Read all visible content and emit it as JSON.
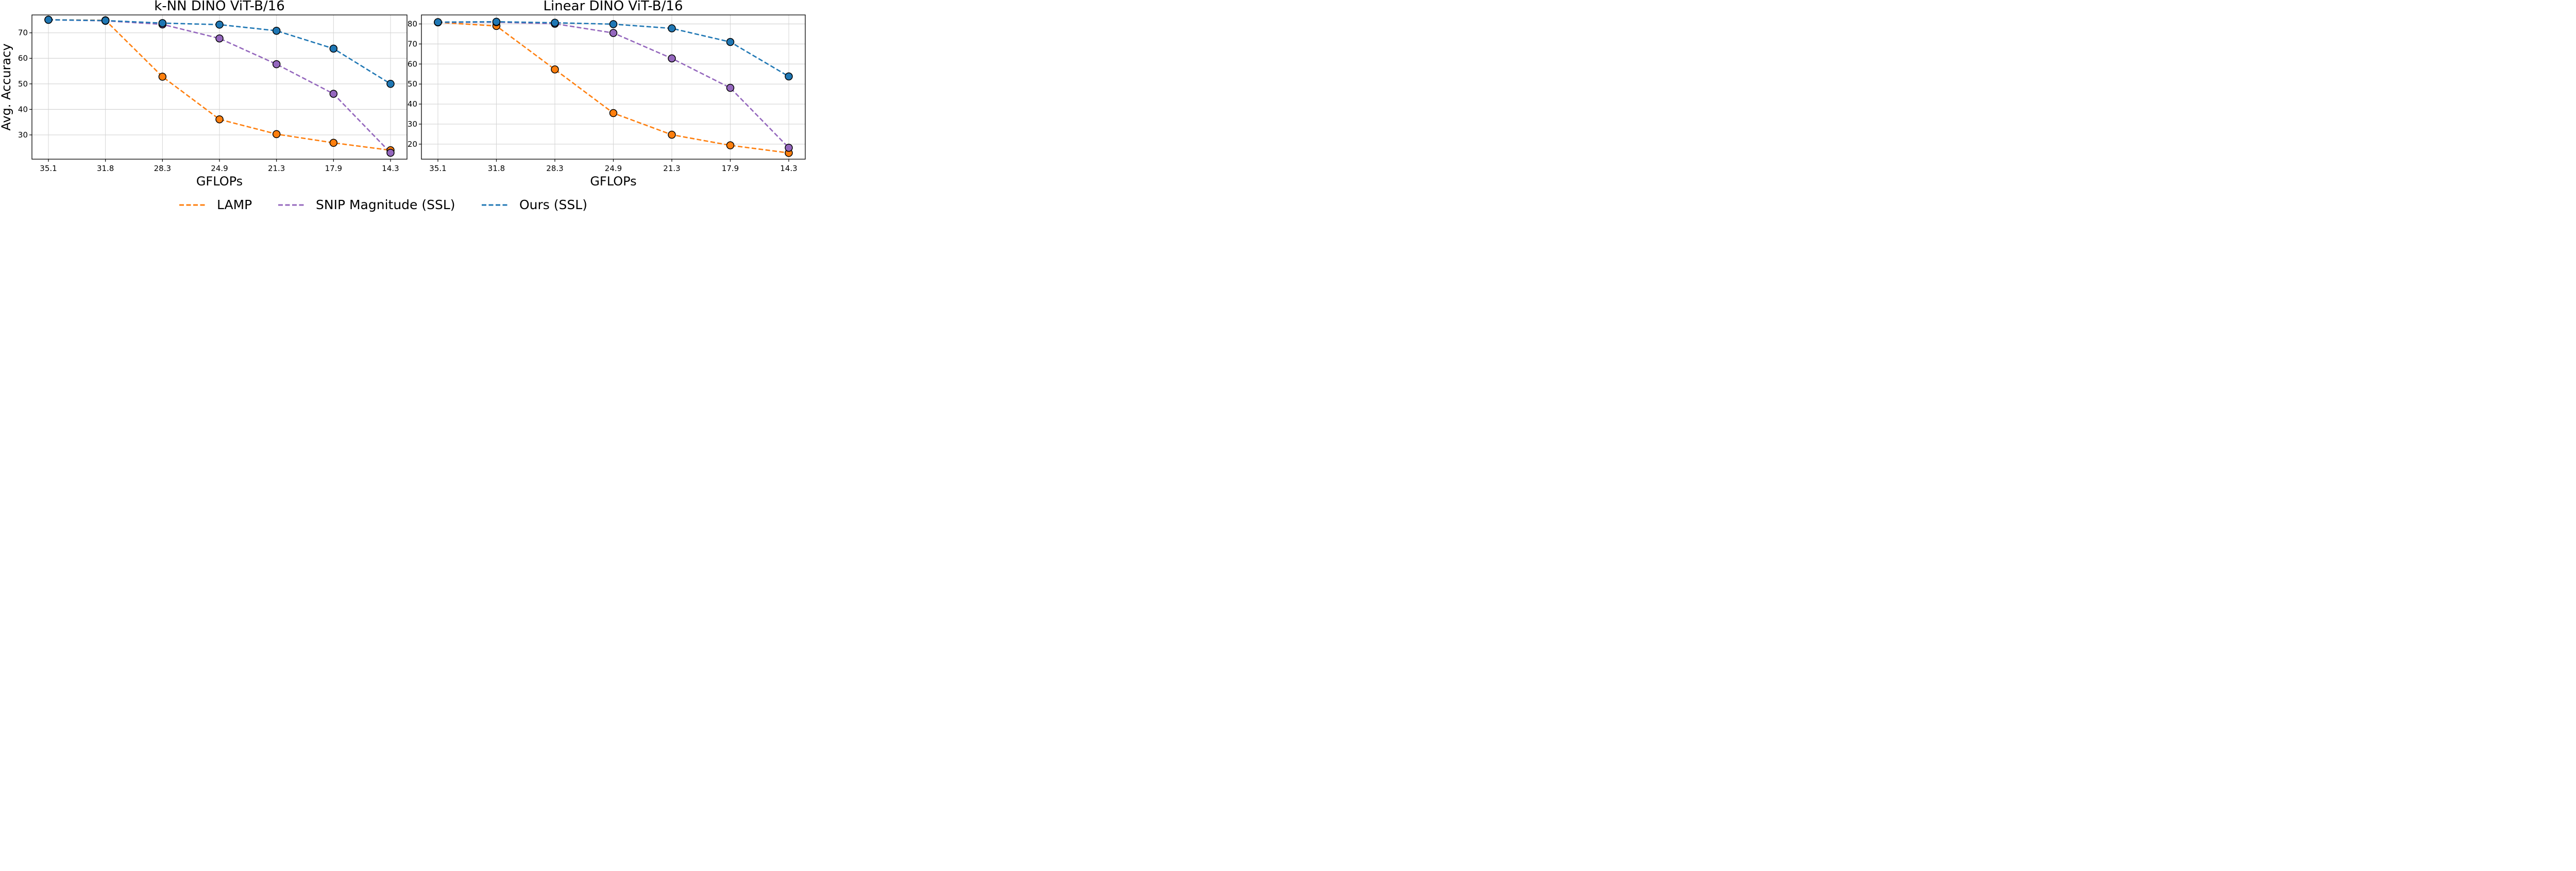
{
  "legend": {
    "position": "bottom-center",
    "entries": [
      {
        "name": "LAMP",
        "color": "#ff7f0e"
      },
      {
        "name": "SNIP Magnitude (SSL)",
        "color": "#9467bd"
      },
      {
        "name": "Ours (SSL)",
        "color": "#1f77b4"
      }
    ]
  },
  "chart_data": [
    {
      "type": "line",
      "title": "k-NN DINO ViT-B/16",
      "xlabel": "GFLOPs",
      "ylabel": "Avg. Accuracy",
      "categories": [
        "35.1",
        "31.8",
        "28.3",
        "24.9",
        "21.3",
        "17.9",
        "14.3"
      ],
      "ylim": [
        20.5,
        77.0
      ],
      "yticks": [
        30,
        40,
        50,
        60,
        70
      ],
      "grid": true,
      "series": [
        {
          "name": "LAMP",
          "color": "#ff7f0e",
          "values": [
            75.1,
            74.9,
            52.8,
            36.1,
            30.3,
            26.9,
            24.0
          ]
        },
        {
          "name": "SNIP Magnitude (SSL)",
          "color": "#9467bd",
          "values": [
            75.1,
            74.7,
            73.3,
            67.8,
            57.7,
            46.1,
            23.0
          ]
        },
        {
          "name": "Ours (SSL)",
          "color": "#1f77b4",
          "values": [
            75.1,
            74.8,
            73.8,
            73.2,
            70.8,
            63.8,
            50.0
          ]
        }
      ]
    },
    {
      "type": "line",
      "title": "Linear DINO ViT-B/16",
      "xlabel": "GFLOPs",
      "ylabel": "",
      "categories": [
        "35.1",
        "31.8",
        "28.3",
        "24.9",
        "21.3",
        "17.9",
        "14.3"
      ],
      "ylim": [
        12.5,
        84.5
      ],
      "yticks": [
        20,
        30,
        40,
        50,
        60,
        70,
        80
      ],
      "grid": true,
      "series": [
        {
          "name": "LAMP",
          "color": "#ff7f0e",
          "values": [
            80.8,
            79.0,
            57.3,
            35.5,
            24.7,
            19.4,
            15.6
          ]
        },
        {
          "name": "SNIP Magnitude (SSL)",
          "color": "#9467bd",
          "values": [
            80.8,
            80.9,
            80.1,
            75.5,
            62.8,
            48.1,
            18.2
          ]
        },
        {
          "name": "Ours (SSL)",
          "color": "#1f77b4",
          "values": [
            80.9,
            81.1,
            80.6,
            79.9,
            77.8,
            71.0,
            53.8
          ]
        }
      ]
    }
  ]
}
